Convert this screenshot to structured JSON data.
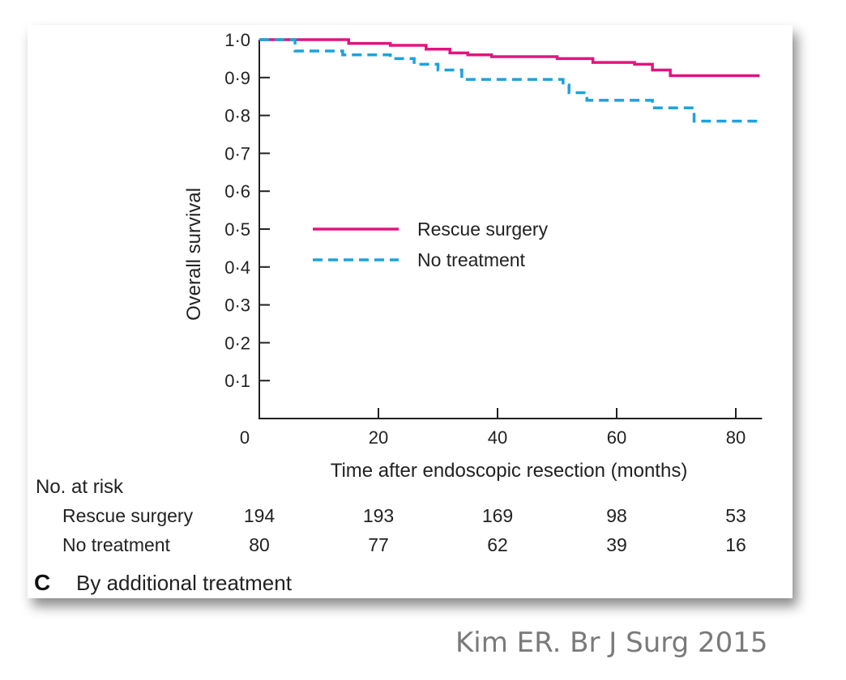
{
  "chart_data": {
    "type": "line",
    "panel_label": "C",
    "caption": "By additional treatment",
    "xlabel": "Time after endoscopic resection (months)",
    "ylabel": "Overall survival",
    "xlim": [
      0,
      84
    ],
    "ylim": [
      0,
      1
    ],
    "x_ticks": [
      0,
      20,
      40,
      60,
      80
    ],
    "x_tick_labels": [
      "0",
      "20",
      "40",
      "60",
      "80"
    ],
    "y_ticks": [
      0.1,
      0.2,
      0.3,
      0.4,
      0.5,
      0.6,
      0.7,
      0.8,
      0.9,
      1.0
    ],
    "y_tick_labels": [
      "0·1",
      "0·2",
      "0·3",
      "0·4",
      "0·5",
      "0·6",
      "0·7",
      "0·8",
      "0·9",
      "1·0"
    ],
    "grid": false,
    "legend_position": "center",
    "series": [
      {
        "name": "Rescue surgery",
        "color": "#e0157f",
        "dash": "solid",
        "steps": [
          [
            0,
            1.0
          ],
          [
            15,
            0.99
          ],
          [
            22,
            0.985
          ],
          [
            28,
            0.975
          ],
          [
            32,
            0.965
          ],
          [
            35,
            0.96
          ],
          [
            39,
            0.955
          ],
          [
            50,
            0.95
          ],
          [
            56,
            0.94
          ],
          [
            63,
            0.935
          ],
          [
            66,
            0.92
          ],
          [
            69,
            0.905
          ],
          [
            84,
            0.905
          ]
        ]
      },
      {
        "name": "No treatment",
        "color": "#1ba3dd",
        "dash": "dashed",
        "steps": [
          [
            0,
            1.0
          ],
          [
            6,
            0.97
          ],
          [
            14,
            0.96
          ],
          [
            22,
            0.95
          ],
          [
            26,
            0.935
          ],
          [
            30,
            0.92
          ],
          [
            34,
            0.895
          ],
          [
            51,
            0.88
          ],
          [
            52,
            0.86
          ],
          [
            55,
            0.84
          ],
          [
            66,
            0.82
          ],
          [
            73,
            0.785
          ],
          [
            84,
            0.785
          ]
        ]
      }
    ],
    "risk_table": {
      "title": "No. at risk",
      "times": [
        0,
        20,
        40,
        60,
        80
      ],
      "rows": [
        {
          "label": "Rescue surgery",
          "values": [
            "194",
            "193",
            "169",
            "98",
            "53"
          ]
        },
        {
          "label": "No treatment",
          "values": [
            "80",
            "77",
            "62",
            "39",
            "16"
          ]
        }
      ]
    }
  },
  "citation": "Kim ER. Br J Surg 2015"
}
